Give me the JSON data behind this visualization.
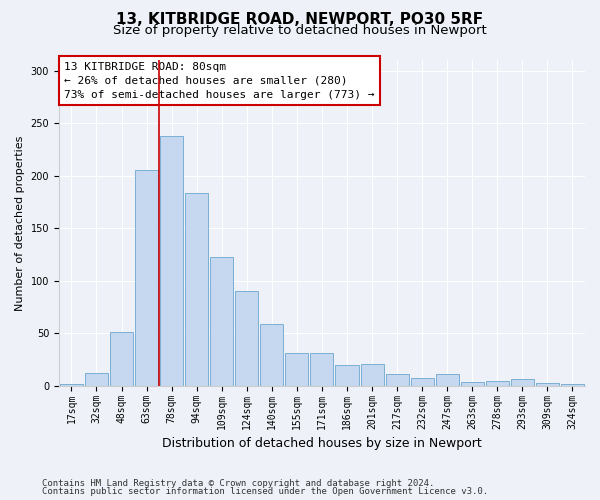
{
  "title1": "13, KITBRIDGE ROAD, NEWPORT, PO30 5RF",
  "title2": "Size of property relative to detached houses in Newport",
  "xlabel": "Distribution of detached houses by size in Newport",
  "ylabel": "Number of detached properties",
  "categories": [
    "17sqm",
    "32sqm",
    "48sqm",
    "63sqm",
    "78sqm",
    "94sqm",
    "109sqm",
    "124sqm",
    "140sqm",
    "155sqm",
    "171sqm",
    "186sqm",
    "201sqm",
    "217sqm",
    "232sqm",
    "247sqm",
    "263sqm",
    "278sqm",
    "293sqm",
    "309sqm",
    "324sqm"
  ],
  "values": [
    2,
    12,
    51,
    205,
    238,
    183,
    123,
    90,
    59,
    31,
    31,
    20,
    21,
    11,
    7,
    11,
    4,
    5,
    6,
    3,
    2
  ],
  "bar_color": "#c5d8f0",
  "bar_edge_color": "#7aafd4",
  "vline_bin_index": 4,
  "annotation_text1": "13 KITBRIDGE ROAD: 80sqm",
  "annotation_text2": "← 26% of detached houses are smaller (280)",
  "annotation_text3": "73% of semi-detached houses are larger (773) →",
  "annotation_box_facecolor": "#ffffff",
  "annotation_box_edgecolor": "#cc0000",
  "vline_color": "#cc0000",
  "ylim": [
    0,
    310
  ],
  "yticks": [
    0,
    50,
    100,
    150,
    200,
    250,
    300
  ],
  "footer1": "Contains HM Land Registry data © Crown copyright and database right 2024.",
  "footer2": "Contains public sector information licensed under the Open Government Licence v3.0.",
  "bg_color": "#eef2f8",
  "plot_bg_color": "#eef2f8",
  "title1_fontsize": 11,
  "title2_fontsize": 9.5,
  "xlabel_fontsize": 9,
  "ylabel_fontsize": 8,
  "annot_fontsize": 8,
  "tick_fontsize": 7,
  "footer_fontsize": 6.5
}
